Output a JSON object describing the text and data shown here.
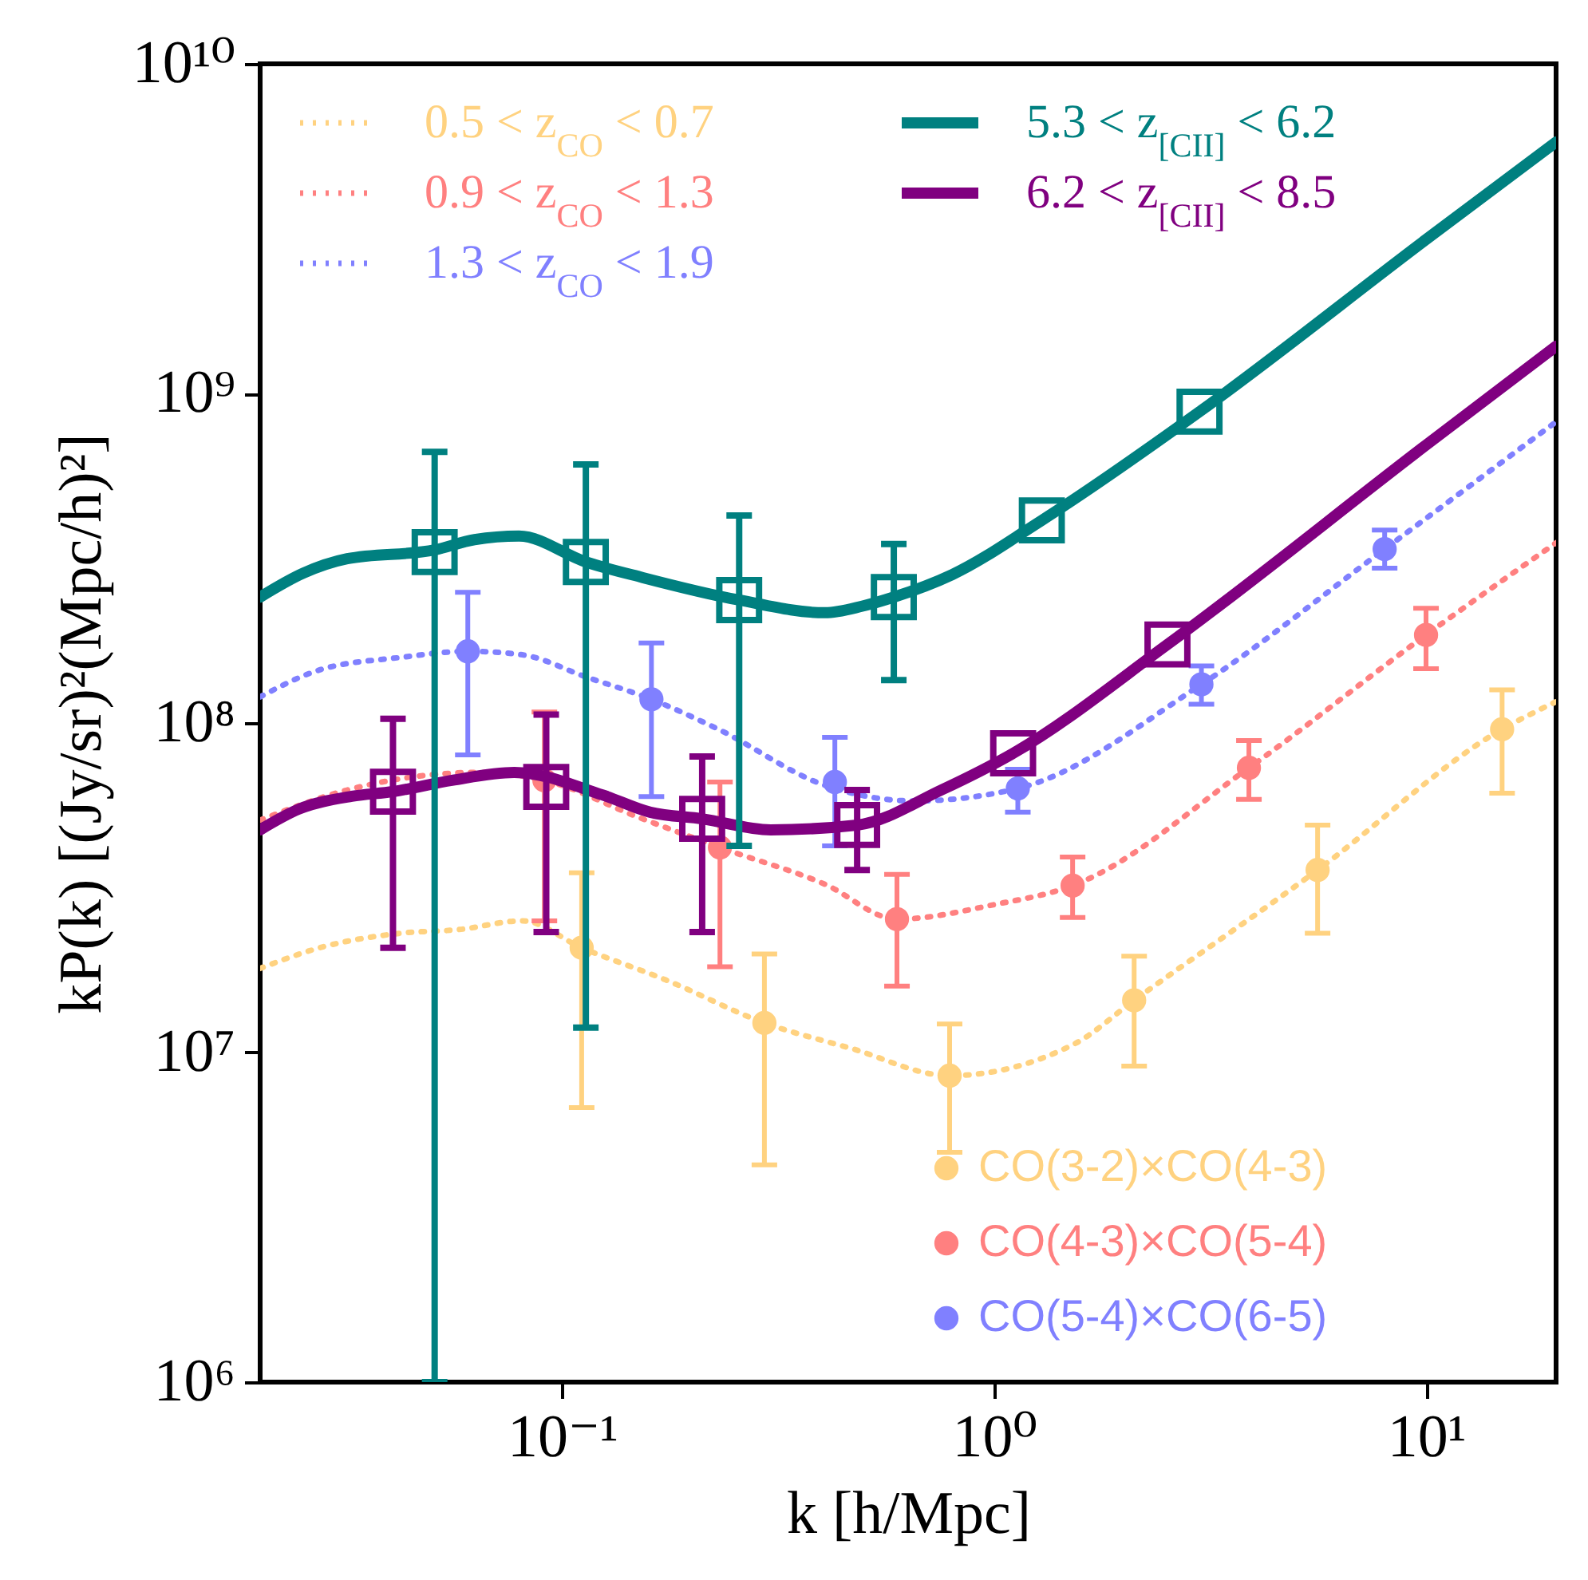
{
  "chart_data": {
    "type": "line",
    "xlabel": "k [h/Mpc]",
    "ylabel": "kP(k) [(Jy/sr)²(Mpc/h)²]",
    "log": "xy",
    "xlim": [
      0.02,
      20
    ],
    "ylim": [
      1000000,
      10000000000
    ],
    "xticks": [
      {
        "value": 0.1,
        "label": "10⁻¹"
      },
      {
        "value": 1,
        "label": "10⁰"
      },
      {
        "value": 10,
        "label": "10¹"
      }
    ],
    "yticks": [
      {
        "value": 1000000,
        "label": "10⁶"
      },
      {
        "value": 10000000,
        "label": "10⁷"
      },
      {
        "value": 100000000,
        "label": "10⁸"
      },
      {
        "value": 1000000000,
        "label": "10⁹"
      },
      {
        "value": 10000000000,
        "label": "10¹⁰"
      }
    ],
    "legend": "top left",
    "series": [
      {
        "type": "line",
        "name": "0.5 < z$_{CO}$ < 0.7",
        "color": "#ffd280",
        "line_style": "dotted",
        "x": [
          0.02,
          0.0275,
          0.0421,
          0.0575,
          0.0809,
          0.111,
          0.174,
          0.294,
          0.466,
          0.789,
          1.53,
          2.11,
          5.61,
          15,
          20
        ],
        "values": [
          18000000,
          20800000,
          23000000,
          23600000,
          25100000,
          20800000,
          16600000,
          12300000,
          10300000,
          8510000,
          10600000,
          14400000,
          35800000,
          95700000,
          116000000
        ]
      },
      {
        "type": "line",
        "name": "0.9 < z$_{CO}$ < 1.3",
        "color": "#ff8080",
        "line_style": "dotted",
        "x": [
          0.02,
          0.0318,
          0.0643,
          0.091,
          0.15,
          0.232,
          0.406,
          0.596,
          1,
          1.52,
          3.89,
          10,
          20
        ],
        "values": [
          50700000,
          62600000,
          70800000,
          67000000,
          51800000,
          41900000,
          32400000,
          25400000,
          28100000,
          32100000,
          73100000,
          185000000,
          352000000
        ]
      },
      {
        "type": "line",
        "name": "1.3 < z$_{CO}$ < 1.9",
        "color": "#8080ff",
        "line_style": "dotted",
        "x": [
          0.02,
          0.0275,
          0.0421,
          0.0605,
          0.0809,
          0.1135,
          0.161,
          0.23,
          0.406,
          0.653,
          1.135,
          3.02,
          8.02,
          20
        ],
        "values": [
          120000000,
          145000000,
          158000000,
          165000000,
          161000000,
          138000000,
          118000000,
          95700000,
          64700000,
          58000000,
          63300000,
          131000000,
          337000000,
          820000000
        ]
      },
      {
        "type": "scatter",
        "name": "CO(3-2)×CO(4-3)",
        "color": "#ffd280",
        "marker": "circle",
        "x": [
          0.111,
          0.294,
          0.789,
          2.11,
          5.61,
          15
        ],
        "values": [
          20800000,
          12300000,
          8510000,
          14400000,
          35800000,
          95700000
        ],
        "errors": [
          [
            6810000,
            35100000
          ],
          [
            4560000,
            19900000
          ],
          [
            4980000,
            12200000
          ],
          [
            9100000,
            19600000
          ],
          [
            23000000,
            49000000
          ],
          [
            61200000,
            126000000
          ]
        ]
      },
      {
        "type": "scatter",
        "name": "CO(4-3)×CO(5-4)",
        "color": "#ff8080",
        "marker": "circle",
        "x": [
          0.091,
          0.232,
          0.596,
          1.52,
          3.89,
          10
        ],
        "values": [
          67000000,
          41900000,
          25400000,
          32100000,
          73100000,
          185000000
        ],
        "errors": [
          [
            25100000,
            108000000
          ],
          [
            18200000,
            66200000
          ],
          [
            15900000,
            34700000
          ],
          [
            25700000,
            39200000
          ],
          [
            58600000,
            88500000
          ],
          [
            146000000,
            223000000
          ]
        ]
      },
      {
        "type": "scatter",
        "name": "CO(5-4)×CO(6-5)",
        "color": "#8080ff",
        "marker": "circle",
        "x": [
          0.0605,
          0.161,
          0.428,
          1.135,
          3.02,
          8.02
        ],
        "values": [
          165000000,
          118000000,
          66200000,
          63300000,
          131000000,
          337000000
        ],
        "errors": [
          [
            80000000,
            249000000
          ],
          [
            59800000,
            175000000
          ],
          [
            42400000,
            90400000
          ],
          [
            53600000,
            72400000
          ],
          [
            114000000,
            149000000
          ],
          [
            295000000,
            385000000
          ]
        ]
      },
      {
        "type": "line",
        "name": "5.3 < z$_{[CII]}$ < 6.2",
        "color": "#008080",
        "line_style": "solid",
        "x": [
          0.02,
          0.0252,
          0.0318,
          0.0507,
          0.0627,
          0.0795,
          0.1135,
          0.154,
          0.257,
          0.406,
          0.494,
          0.586,
          0.8,
          1.29,
          2.99,
          10,
          20
        ],
        "values": [
          241000000,
          285000000,
          315000000,
          335000000,
          360000000,
          369000000,
          308000000,
          276000000,
          236000000,
          216000000,
          226000000,
          241000000,
          282000000,
          412000000,
          880000000,
          2930000000,
          5790000000
        ]
      },
      {
        "type": "line",
        "name": "6.2 < z$_{[CII]}$ < 8.5",
        "color": "#800080",
        "line_style": "solid",
        "x": [
          0.02,
          0.0246,
          0.0326,
          0.0406,
          0.0556,
          0.0775,
          0.124,
          0.16,
          0.211,
          0.304,
          0.482,
          0.755,
          1.107,
          2.52,
          10,
          20
        ],
        "values": [
          47400000,
          54800000,
          59900000,
          61900000,
          67000000,
          70800000,
          60500000,
          53600000,
          51200000,
          47400000,
          49000000,
          62600000,
          80900000,
          173000000,
          697000000,
          1390000000
        ]
      },
      {
        "type": "scatter",
        "color": "#008080",
        "marker": "square",
        "x": [
          0.0507,
          0.1135,
          0.257,
          0.586,
          1.29,
          2.99
        ],
        "values": [
          330000000,
          308000000,
          236000000,
          241000000,
          412000000,
          880000000
        ],
        "errors": [
          [
            1000000,
            665000000
          ],
          [
            11900000,
            609000000
          ],
          [
            42400000,
            426000000
          ],
          [
            135000000,
            349000000
          ],
          null,
          null
        ]
      },
      {
        "type": "scatter",
        "color": "#800080",
        "marker": "square",
        "x": [
          0.0406,
          0.0919,
          0.211,
          0.482,
          1.107,
          2.52
        ],
        "values": [
          61900000,
          64000000,
          51200000,
          49000000,
          80900000,
          173000000
        ],
        "errors": [
          [
            20800000,
            103000000
          ],
          [
            23200000,
            106000000
          ],
          [
            23200000,
            79100000
          ],
          [
            35800000,
            62600000
          ],
          null,
          null
        ]
      }
    ]
  }
}
